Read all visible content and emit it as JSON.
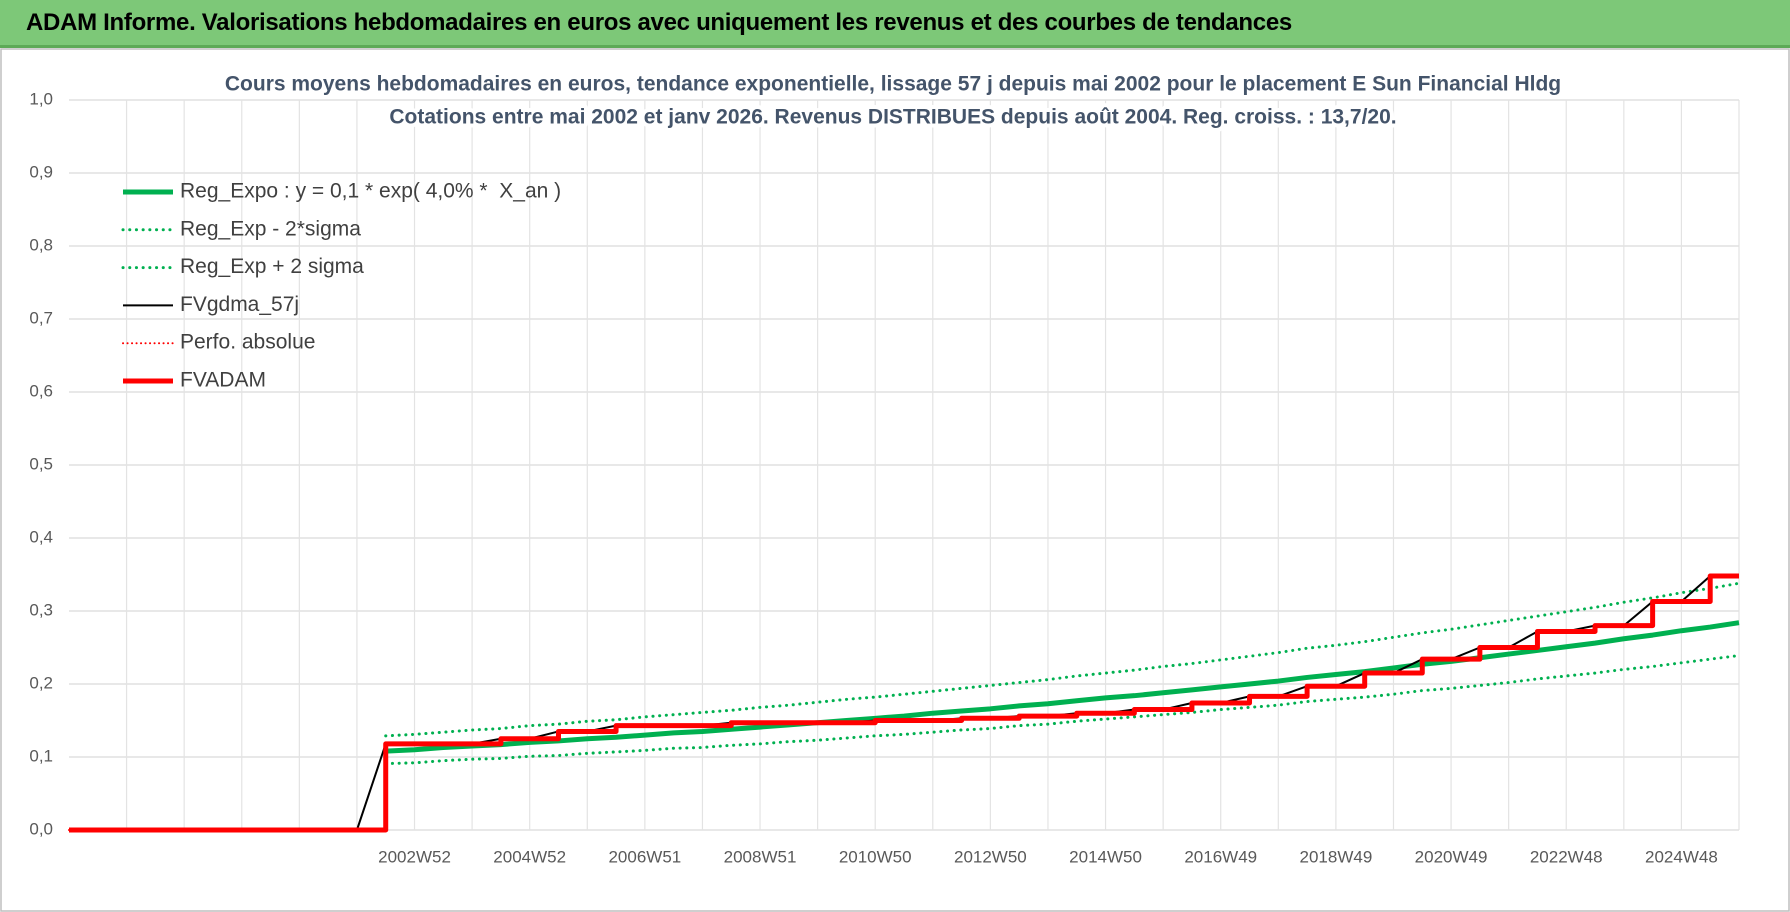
{
  "header": {
    "title": "ADAM Informe. Valorisations hebdomadaires en euros avec uniquement les revenus et des courbes de tendances"
  },
  "chart_data": {
    "type": "line",
    "title": "Cours moyens hebdomadaires en euros, tendance exponentielle, lissage 57 j depuis mai 2002 pour le placement E Sun Financial Hldg",
    "subtitle": "Cotations entre mai 2002 et janv 2026. Revenus DISTRIBUES depuis août 2004. Reg. croiss. : 13,7/20.",
    "categories": [
      null,
      null,
      null,
      null,
      null,
      null,
      null,
      null,
      null,
      null,
      null,
      null,
      "2002W52",
      null,
      null,
      null,
      "2004W52",
      null,
      null,
      null,
      "2006W51",
      null,
      null,
      null,
      "2008W51",
      null,
      null,
      null,
      "2010W50",
      null,
      null,
      null,
      "2012W50",
      null,
      null,
      null,
      "2014W50",
      null,
      null,
      null,
      "2016W49",
      null,
      null,
      null,
      "2018W49",
      null,
      null,
      null,
      "2020W49",
      null,
      null,
      null,
      "2022W48",
      null,
      null,
      null,
      "2024W48",
      null,
      null
    ],
    "ylim": [
      0,
      1
    ],
    "yticks": [
      {
        "value": 0,
        "label": "0,0"
      },
      {
        "value": 0.1,
        "label": "0,1"
      },
      {
        "value": 0.2,
        "label": "0,2"
      },
      {
        "value": 0.3,
        "label": "0,3"
      },
      {
        "value": 0.4,
        "label": "0,4"
      },
      {
        "value": 0.5,
        "label": "0,5"
      },
      {
        "value": 0.6,
        "label": "0,6"
      },
      {
        "value": 0.7,
        "label": "0,7"
      },
      {
        "value": 0.8,
        "label": "0,8"
      },
      {
        "value": 0.9,
        "label": "0,9"
      },
      {
        "value": 1,
        "label": "1,0"
      }
    ],
    "grid": true,
    "legend": "top-left",
    "series": [
      {
        "name": "Reg_Expo : y = 0,1 * exp( 4,0% *  X_an )",
        "color": "#00b050",
        "style": "solid",
        "width": 5,
        "values": [
          null,
          null,
          null,
          null,
          null,
          null,
          null,
          null,
          null,
          null,
          null,
          0.108,
          0.11,
          0.113,
          0.115,
          0.117,
          0.12,
          0.122,
          0.125,
          0.127,
          0.13,
          0.133,
          0.135,
          0.138,
          0.141,
          0.144,
          0.147,
          0.15,
          0.153,
          0.156,
          0.16,
          0.163,
          0.166,
          0.17,
          0.173,
          0.177,
          0.181,
          0.184,
          0.188,
          0.192,
          0.196,
          0.2,
          0.204,
          0.209,
          0.213,
          0.217,
          0.222,
          0.227,
          0.231,
          0.236,
          0.241,
          0.246,
          0.251,
          0.256,
          0.262,
          0.267,
          0.273,
          0.278,
          0.284
        ]
      },
      {
        "name": "Reg_Exp - 2*sigma",
        "color": "#00b050",
        "style": "dotted",
        "width": 3,
        "values": [
          null,
          null,
          null,
          null,
          null,
          null,
          null,
          null,
          null,
          null,
          null,
          0.091,
          0.092,
          0.095,
          0.097,
          0.098,
          0.101,
          0.102,
          0.105,
          0.107,
          0.109,
          0.112,
          0.113,
          0.116,
          0.118,
          0.121,
          0.123,
          0.126,
          0.129,
          0.131,
          0.134,
          0.137,
          0.139,
          0.143,
          0.145,
          0.149,
          0.152,
          0.155,
          0.158,
          0.161,
          0.165,
          0.168,
          0.171,
          0.176,
          0.179,
          0.182,
          0.186,
          0.191,
          0.194,
          0.198,
          0.202,
          0.207,
          0.211,
          0.215,
          0.22,
          0.224,
          0.229,
          0.234,
          0.239
        ]
      },
      {
        "name": "Reg_Exp + 2 sigma",
        "color": "#00b050",
        "style": "dotted",
        "width": 3,
        "values": [
          null,
          null,
          null,
          null,
          null,
          null,
          null,
          null,
          null,
          null,
          null,
          0.129,
          0.131,
          0.134,
          0.137,
          0.139,
          0.143,
          0.145,
          0.149,
          0.151,
          0.155,
          0.158,
          0.161,
          0.164,
          0.168,
          0.171,
          0.175,
          0.179,
          0.182,
          0.186,
          0.19,
          0.194,
          0.198,
          0.202,
          0.206,
          0.211,
          0.215,
          0.219,
          0.224,
          0.228,
          0.233,
          0.238,
          0.243,
          0.249,
          0.253,
          0.258,
          0.264,
          0.27,
          0.275,
          0.281,
          0.287,
          0.293,
          0.299,
          0.305,
          0.312,
          0.318,
          0.325,
          0.331,
          0.338
        ]
      },
      {
        "name": "FVgdma_57j",
        "color": "#000000",
        "style": "solid",
        "width": 2,
        "values": [
          0,
          0,
          0,
          0,
          0,
          0,
          0,
          0,
          0,
          0,
          0,
          0.118,
          0.118,
          0.118,
          0.118,
          0.125,
          0.125,
          0.135,
          0.135,
          0.143,
          0.143,
          0.143,
          0.143,
          0.147,
          0.147,
          0.147,
          0.147,
          0.147,
          0.15,
          0.15,
          0.15,
          0.153,
          0.153,
          0.156,
          0.156,
          0.16,
          0.16,
          0.165,
          0.165,
          0.174,
          0.174,
          0.183,
          0.183,
          0.197,
          0.197,
          0.215,
          0.215,
          0.234,
          0.234,
          0.25,
          0.25,
          0.272,
          0.272,
          0.28,
          0.28,
          0.313,
          0.313,
          0.348,
          0.348
        ]
      },
      {
        "name": "Perfo. absolue",
        "color": "#ff0000",
        "style": "dotted",
        "width": 2,
        "step": true,
        "values": [
          0,
          0,
          0,
          0,
          0,
          0,
          0,
          0,
          0,
          0,
          0,
          0.118,
          0.118,
          0.118,
          0.118,
          0.125,
          0.125,
          0.135,
          0.135,
          0.143,
          0.143,
          0.143,
          0.143,
          0.147,
          0.147,
          0.147,
          0.147,
          0.147,
          0.15,
          0.15,
          0.15,
          0.153,
          0.153,
          0.156,
          0.156,
          0.16,
          0.16,
          0.165,
          0.165,
          0.174,
          0.174,
          0.183,
          0.183,
          0.197,
          0.197,
          0.215,
          0.215,
          0.234,
          0.234,
          0.25,
          0.25,
          0.272,
          0.272,
          0.28,
          0.28,
          0.313,
          0.313,
          0.348,
          0.348
        ]
      },
      {
        "name": "FVADAM",
        "color": "#ff0000",
        "style": "solid",
        "width": 5,
        "step": true,
        "values": [
          0,
          0,
          0,
          0,
          0,
          0,
          0,
          0,
          0,
          0,
          0,
          0.118,
          0.118,
          0.118,
          0.118,
          0.125,
          0.125,
          0.135,
          0.135,
          0.143,
          0.143,
          0.143,
          0.143,
          0.147,
          0.147,
          0.147,
          0.147,
          0.147,
          0.15,
          0.15,
          0.15,
          0.153,
          0.153,
          0.156,
          0.156,
          0.16,
          0.16,
          0.165,
          0.165,
          0.174,
          0.174,
          0.183,
          0.183,
          0.197,
          0.197,
          0.215,
          0.215,
          0.234,
          0.234,
          0.25,
          0.25,
          0.272,
          0.272,
          0.28,
          0.28,
          0.313,
          0.313,
          0.348,
          0.348
        ]
      }
    ]
  }
}
